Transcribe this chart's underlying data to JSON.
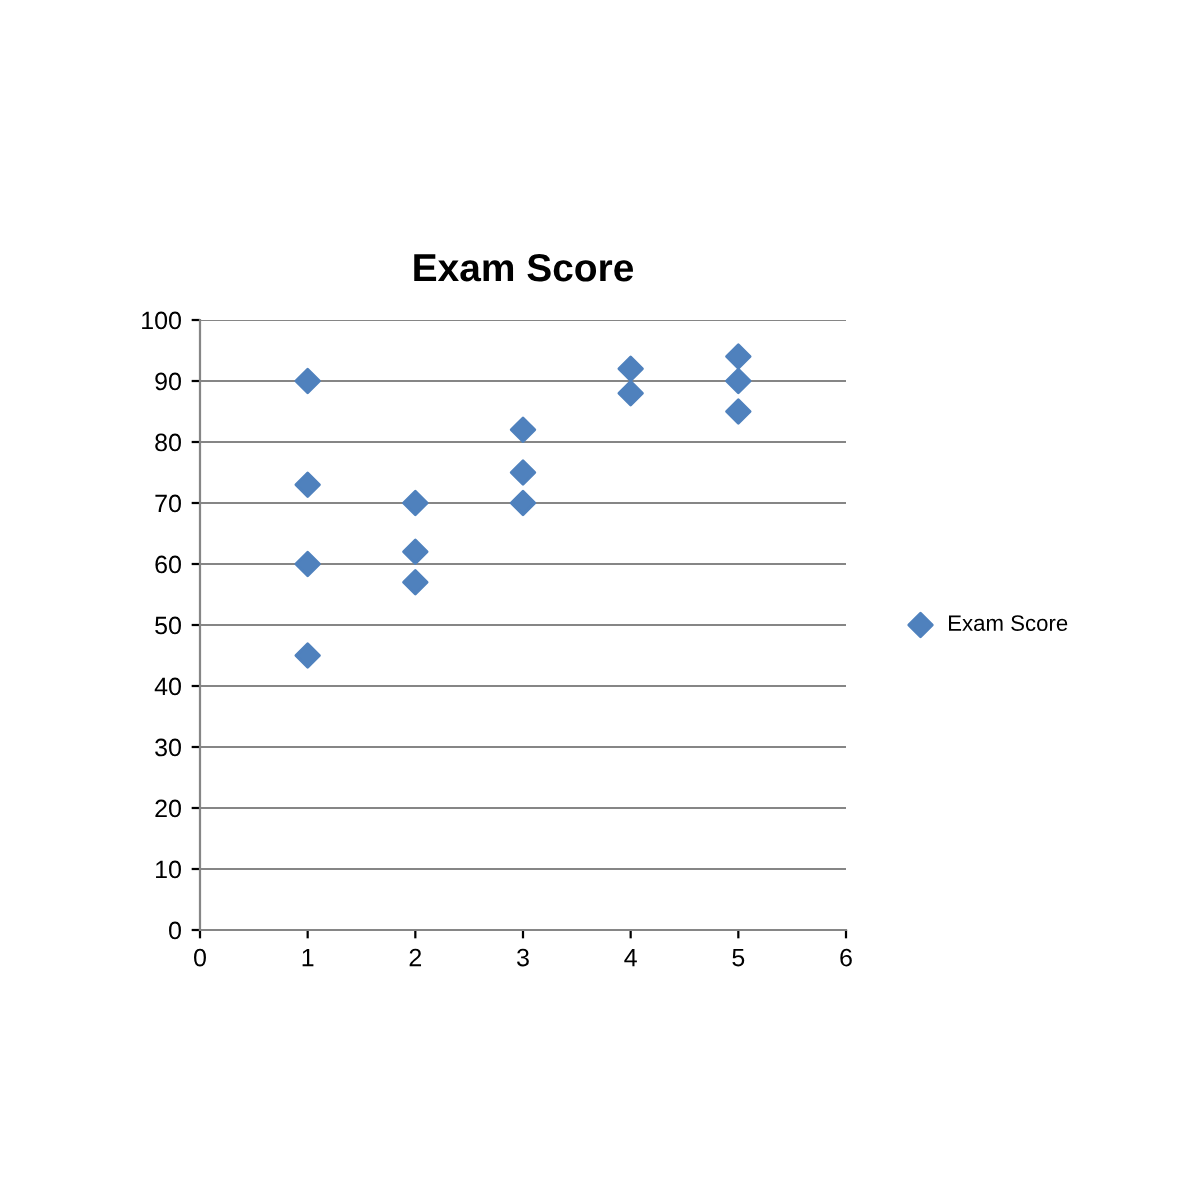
{
  "chart_data": {
    "type": "scatter",
    "title": "Exam Score",
    "series": [
      {
        "name": "Exam Score",
        "color": "#4f81bd",
        "x": [
          1,
          1,
          1,
          1,
          2,
          2,
          2,
          3,
          3,
          3,
          4,
          4,
          5,
          5,
          5
        ],
        "values": [
          90,
          73,
          60,
          45,
          70,
          62,
          57,
          82,
          75,
          70,
          92,
          88,
          94,
          90,
          85
        ]
      }
    ],
    "xlim": [
      0,
      6
    ],
    "xticks": [
      0,
      1,
      2,
      3,
      4,
      5,
      6
    ],
    "ylim": [
      0,
      100
    ],
    "yticks": [
      0,
      10,
      20,
      30,
      40,
      50,
      60,
      70,
      80,
      90,
      100
    ],
    "grid": "y",
    "legend": "right",
    "marker": "diamond"
  }
}
